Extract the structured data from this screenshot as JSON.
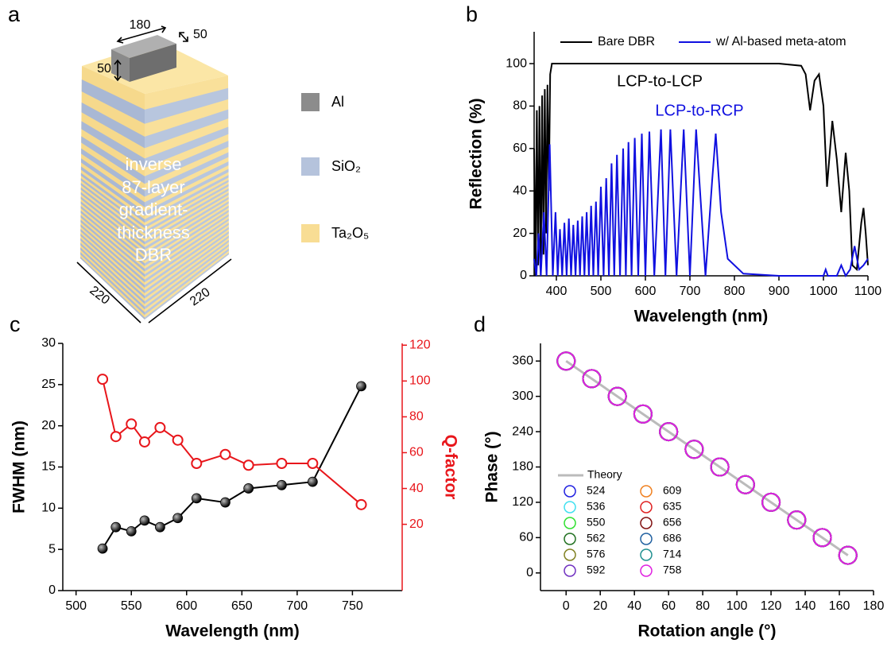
{
  "diagram": {
    "panel": "a",
    "block_dims": [
      "180",
      "50",
      "50"
    ],
    "text": [
      "inverse",
      "87-layer",
      "gradient-",
      "thickness",
      "DBR"
    ],
    "base_dims": [
      "220",
      "220"
    ],
    "legend": [
      "Al",
      "SiO₂",
      "Ta₂O₅"
    ]
  },
  "chart_data": [
    {
      "panel": "b",
      "type": "line",
      "xlabel": "Wavelength (nm)",
      "ylabel": "Reflection (%)",
      "xlim": [
        350,
        1100
      ],
      "xticks": [
        400,
        500,
        600,
        700,
        800,
        900,
        1000,
        1100
      ],
      "ylim": [
        0,
        115
      ],
      "yticks": [
        0,
        20,
        40,
        60,
        80,
        100
      ],
      "legend": "top",
      "annotations": [
        "LCP-to-LCP",
        "LCP-to-RCP"
      ],
      "series": [
        {
          "name": "Bare DBR",
          "color": "#000000",
          "x": [
            350,
            353,
            356,
            359,
            362,
            365,
            368,
            371,
            374,
            377,
            380,
            383,
            386,
            390,
            400,
            500,
            600,
            700,
            800,
            900,
            950,
            960,
            970,
            980,
            990,
            1000,
            1008,
            1020,
            1030,
            1040,
            1050,
            1058,
            1065,
            1075,
            1085,
            1090,
            1095,
            1100
          ],
          "values": [
            60,
            0,
            78,
            5,
            80,
            0,
            85,
            10,
            88,
            20,
            90,
            40,
            95,
            100,
            100,
            100,
            100,
            100,
            100,
            100,
            99,
            95,
            78,
            92,
            95,
            80,
            42,
            73,
            55,
            30,
            58,
            40,
            5,
            3,
            25,
            32,
            20,
            5
          ]
        },
        {
          "name": "w/ Al-based meta-atom",
          "color": "#1010e0",
          "x": [
            350,
            355,
            360,
            365,
            372,
            378,
            385,
            392,
            398,
            403,
            408,
            413,
            418,
            423,
            428,
            433,
            438,
            443,
            448,
            453,
            458,
            463,
            468,
            473,
            478,
            483,
            489,
            494,
            500,
            506,
            512,
            518,
            524,
            530,
            536,
            543,
            550,
            556,
            562,
            569,
            576,
            584,
            592,
            600,
            609,
            620,
            635,
            645,
            656,
            670,
            686,
            700,
            714,
            735,
            750,
            758,
            770,
            785,
            820,
            900,
            1000,
            1005,
            1010,
            1030,
            1040,
            1050,
            1060,
            1070,
            1080,
            1090,
            1100
          ],
          "values": [
            8,
            0,
            20,
            0,
            30,
            0,
            62,
            0,
            30,
            0,
            22,
            0,
            25,
            0,
            27,
            0,
            24,
            0,
            26,
            0,
            28,
            0,
            30,
            0,
            33,
            0,
            35,
            0,
            42,
            0,
            46,
            0,
            53,
            0,
            57,
            0,
            60,
            0,
            63,
            0,
            65,
            0,
            67,
            0,
            68,
            0,
            69,
            0,
            69,
            0,
            69,
            0,
            69,
            0,
            45,
            67,
            30,
            8,
            1,
            0,
            0,
            3,
            0,
            0,
            5,
            0,
            3,
            14,
            3,
            5,
            8
          ]
        }
      ]
    },
    {
      "panel": "c",
      "type": "line",
      "xlabel": "Wavelength (nm)",
      "ylabel": "FWHM (nm)",
      "y2label": "Q-factor",
      "y2color": "#e8161b",
      "xlim": [
        488,
        795
      ],
      "xticks": [
        500,
        550,
        600,
        650,
        700,
        750
      ],
      "ylim": [
        0,
        30
      ],
      "yticks": [
        0,
        5,
        10,
        15,
        20,
        25,
        30
      ],
      "y2lim": [
        -17,
        121
      ],
      "y2ticks": [
        20,
        40,
        60,
        80,
        100,
        120
      ],
      "x": [
        524,
        536,
        550,
        562,
        576,
        592,
        609,
        635,
        656,
        686,
        714,
        758
      ],
      "series": [
        {
          "color": "#000000",
          "marker": "filled",
          "values": [
            5.1,
            7.7,
            7.2,
            8.5,
            7.7,
            8.8,
            11.2,
            10.7,
            12.4,
            12.8,
            13.2,
            24.8
          ]
        },
        {
          "color": "#e8161b",
          "marker": "hollow",
          "axis": "y2",
          "values": [
            101,
            69,
            76,
            66,
            74,
            67,
            54,
            59,
            53,
            54,
            54,
            31
          ]
        }
      ]
    },
    {
      "panel": "d",
      "type": "scatter",
      "xlabel": "Rotation angle (°)",
      "ylabel": "Phase (°)",
      "xlim": [
        -15,
        180
      ],
      "xticks": [
        0,
        20,
        40,
        60,
        80,
        100,
        120,
        140,
        160,
        180
      ],
      "ylim": [
        -30,
        390
      ],
      "yticks": [
        0,
        60,
        120,
        180,
        240,
        300,
        360
      ],
      "legend": "lower left",
      "x": [
        0,
        15,
        30,
        45,
        60,
        75,
        90,
        105,
        120,
        135,
        150,
        165
      ],
      "series": [
        {
          "name": "Theory",
          "color": "#bbbbbb",
          "style": "line",
          "x": [
            0,
            165
          ],
          "values": [
            360,
            30
          ]
        },
        {
          "name": "524",
          "color": "#2020e0",
          "marker": "hollow",
          "values": [
            360,
            330,
            300,
            270,
            240,
            210,
            180,
            150,
            120,
            90,
            60,
            30
          ]
        },
        {
          "name": "536",
          "color": "#40e0f0",
          "marker": "hollow",
          "values": [
            360,
            330,
            300,
            270,
            240,
            210,
            180,
            150,
            120,
            90,
            60,
            30
          ]
        },
        {
          "name": "550",
          "color": "#30e030",
          "marker": "hollow",
          "values": [
            360,
            330,
            300,
            270,
            240,
            210,
            180,
            150,
            120,
            90,
            60,
            30
          ]
        },
        {
          "name": "562",
          "color": "#207020",
          "marker": "hollow",
          "values": [
            360,
            330,
            300,
            270,
            240,
            210,
            180,
            150,
            120,
            90,
            60,
            30
          ]
        },
        {
          "name": "576",
          "color": "#808020",
          "marker": "hollow",
          "values": [
            360,
            330,
            300,
            270,
            240,
            210,
            180,
            150,
            120,
            90,
            60,
            30
          ]
        },
        {
          "name": "592",
          "color": "#7030c0",
          "marker": "hollow",
          "values": [
            360,
            330,
            300,
            270,
            240,
            210,
            180,
            150,
            120,
            90,
            60,
            30
          ]
        },
        {
          "name": "609",
          "color": "#f08020",
          "marker": "hollow",
          "values": [
            360,
            330,
            300,
            270,
            240,
            210,
            180,
            150,
            120,
            90,
            60,
            30
          ]
        },
        {
          "name": "635",
          "color": "#e02020",
          "marker": "hollow",
          "values": [
            360,
            330,
            300,
            270,
            240,
            210,
            180,
            150,
            120,
            90,
            60,
            30
          ]
        },
        {
          "name": "656",
          "color": "#801010",
          "marker": "hollow",
          "values": [
            360,
            330,
            300,
            270,
            240,
            210,
            180,
            150,
            120,
            90,
            60,
            30
          ]
        },
        {
          "name": "686",
          "color": "#2060a0",
          "marker": "hollow",
          "values": [
            360,
            330,
            300,
            270,
            240,
            210,
            180,
            150,
            120,
            90,
            60,
            30
          ]
        },
        {
          "name": "714",
          "color": "#209090",
          "marker": "hollow",
          "values": [
            360,
            330,
            300,
            270,
            240,
            210,
            180,
            150,
            120,
            90,
            60,
            30
          ]
        },
        {
          "name": "758",
          "color": "#e020e0",
          "marker": "hollow",
          "values": [
            360,
            330,
            300,
            270,
            240,
            210,
            180,
            150,
            120,
            90,
            60,
            30
          ]
        }
      ]
    }
  ]
}
